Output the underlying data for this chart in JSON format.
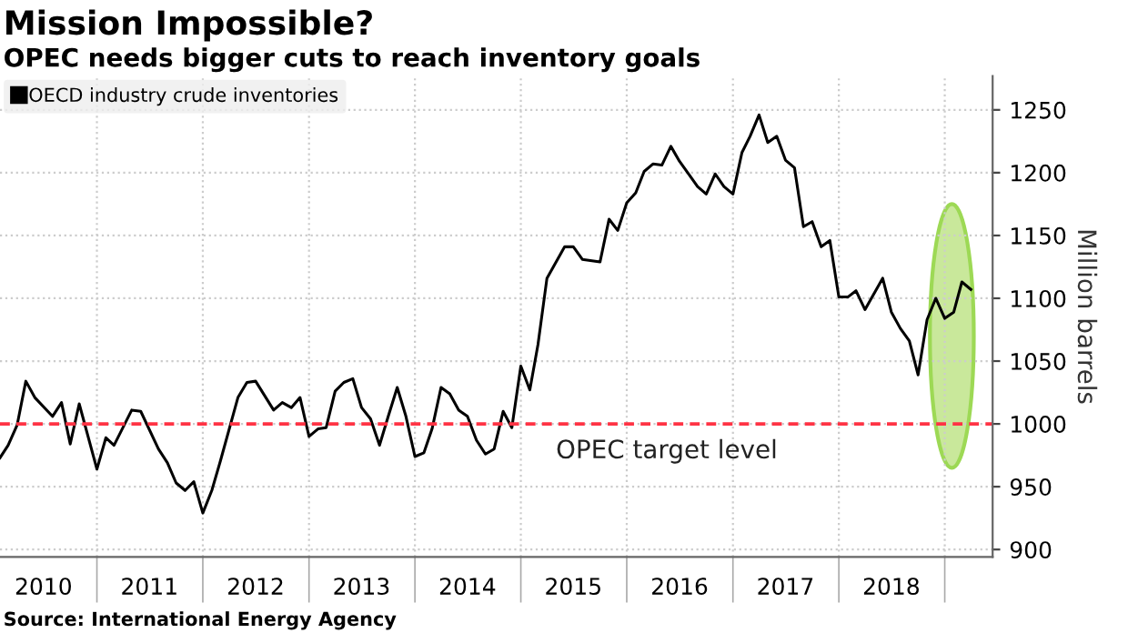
{
  "chart_data": {
    "type": "line",
    "title": "Mission Impossible?",
    "subtitle": "OPEC needs bigger cuts to reach inventory goals",
    "ylabel": "Million barrels",
    "annotations": [
      "Source: International Energy Agency"
    ],
    "series": [
      {
        "name": "OECD industry crude inventories",
        "color": "#000000",
        "x": [
          "2010-02",
          "2010-03",
          "2010-04",
          "2010-05",
          "2010-06",
          "2010-08",
          "2010-09",
          "2010-10",
          "2010-11",
          "2011-01",
          "2011-02",
          "2011-03",
          "2011-05",
          "2011-06",
          "2011-08",
          "2011-09",
          "2011-10",
          "2011-11",
          "2011-12",
          "2012-01",
          "2012-02",
          "2012-03",
          "2012-05",
          "2012-06",
          "2012-07",
          "2012-09",
          "2012-10",
          "2012-11",
          "2012-12",
          "2013-01",
          "2013-02",
          "2013-03",
          "2013-04",
          "2013-05",
          "2013-06",
          "2013-07",
          "2013-08",
          "2013-09",
          "2013-10",
          "2013-11",
          "2013-12",
          "2014-01",
          "2014-02",
          "2014-03",
          "2014-04",
          "2014-05",
          "2014-06",
          "2014-07",
          "2014-08",
          "2014-09",
          "2014-10",
          "2014-11",
          "2014-12",
          "2015-01",
          "2015-02",
          "2015-03",
          "2015-04",
          "2015-06",
          "2015-07",
          "2015-08",
          "2015-10",
          "2015-11",
          "2015-12",
          "2016-01",
          "2016-02",
          "2016-03",
          "2016-04",
          "2016-05",
          "2016-06",
          "2016-07",
          "2016-09",
          "2016-10",
          "2016-11",
          "2016-12",
          "2017-01",
          "2017-02",
          "2017-03",
          "2017-04",
          "2017-05",
          "2017-06",
          "2017-07",
          "2017-08",
          "2017-09",
          "2017-10",
          "2017-11",
          "2017-12",
          "2018-01",
          "2018-02",
          "2018-03",
          "2018-04",
          "2018-06",
          "2018-07",
          "2018-08",
          "2018-09",
          "2018-10",
          "2018-11",
          "2018-12",
          "2019-01",
          "2019-02",
          "2019-03",
          "2019-04"
        ],
        "values": [
          973,
          983,
          999,
          1034,
          1021,
          1006,
          1017,
          984,
          1016,
          964,
          989,
          983,
          1011,
          1010,
          980,
          969,
          953,
          947,
          954,
          929,
          947,
          970,
          1021,
          1033,
          1034,
          1011,
          1017,
          1013,
          1021,
          990,
          996,
          997,
          1026,
          1033,
          1036,
          1013,
          1004,
          983,
          1006,
          1029,
          1006,
          974,
          977,
          996,
          1029,
          1024,
          1011,
          1006,
          987,
          976,
          980,
          1010,
          997,
          1046,
          1027,
          1063,
          1116,
          1141,
          1141,
          1131,
          1129,
          1163,
          1154,
          1176,
          1184,
          1201,
          1207,
          1206,
          1221,
          1209,
          1189,
          1183,
          1199,
          1189,
          1183,
          1216,
          1229,
          1246,
          1224,
          1229,
          1210,
          1204,
          1157,
          1161,
          1141,
          1146,
          1101,
          1101,
          1106,
          1091,
          1116,
          1089,
          1076,
          1066,
          1039,
          1083,
          1100,
          1084,
          1089,
          1113,
          1107
        ]
      }
    ],
    "xlim": [
      "2010-02-01",
      "2019-06-15"
    ],
    "xticks": [
      {
        "value": "2010-07-01",
        "label": "2010"
      },
      {
        "value": "2011-07-01",
        "label": "2011"
      },
      {
        "value": "2012-07-01",
        "label": "2012"
      },
      {
        "value": "2013-07-01",
        "label": "2013"
      },
      {
        "value": "2014-07-01",
        "label": "2014"
      },
      {
        "value": "2015-07-01",
        "label": "2015"
      },
      {
        "value": "2016-07-01",
        "label": "2016"
      },
      {
        "value": "2017-07-01",
        "label": "2017"
      },
      {
        "value": "2018-07-01",
        "label": "2018"
      },
      {
        "value": "2011-01-01",
        "label": null
      },
      {
        "value": "2012-01-01",
        "label": null
      },
      {
        "value": "2013-01-01",
        "label": null
      },
      {
        "value": "2014-01-01",
        "label": null
      },
      {
        "value": "2015-01-01",
        "label": null
      },
      {
        "value": "2016-01-01",
        "label": null
      },
      {
        "value": "2017-01-01",
        "label": null
      },
      {
        "value": "2018-01-01",
        "label": null
      },
      {
        "value": "2019-01-01",
        "label": null
      }
    ],
    "ylim": [
      894,
      1277
    ],
    "yticks": [
      900,
      950,
      1000,
      1050,
      1100,
      1150,
      1200,
      1250
    ],
    "ref_lines": [
      {
        "axis": "y",
        "value": 1000,
        "label": "OPEC target level",
        "color": "#ff3344",
        "line_style": "dashed"
      }
    ],
    "grid": true,
    "legend": "top left",
    "marker": "none",
    "line_style": "solid"
  }
}
